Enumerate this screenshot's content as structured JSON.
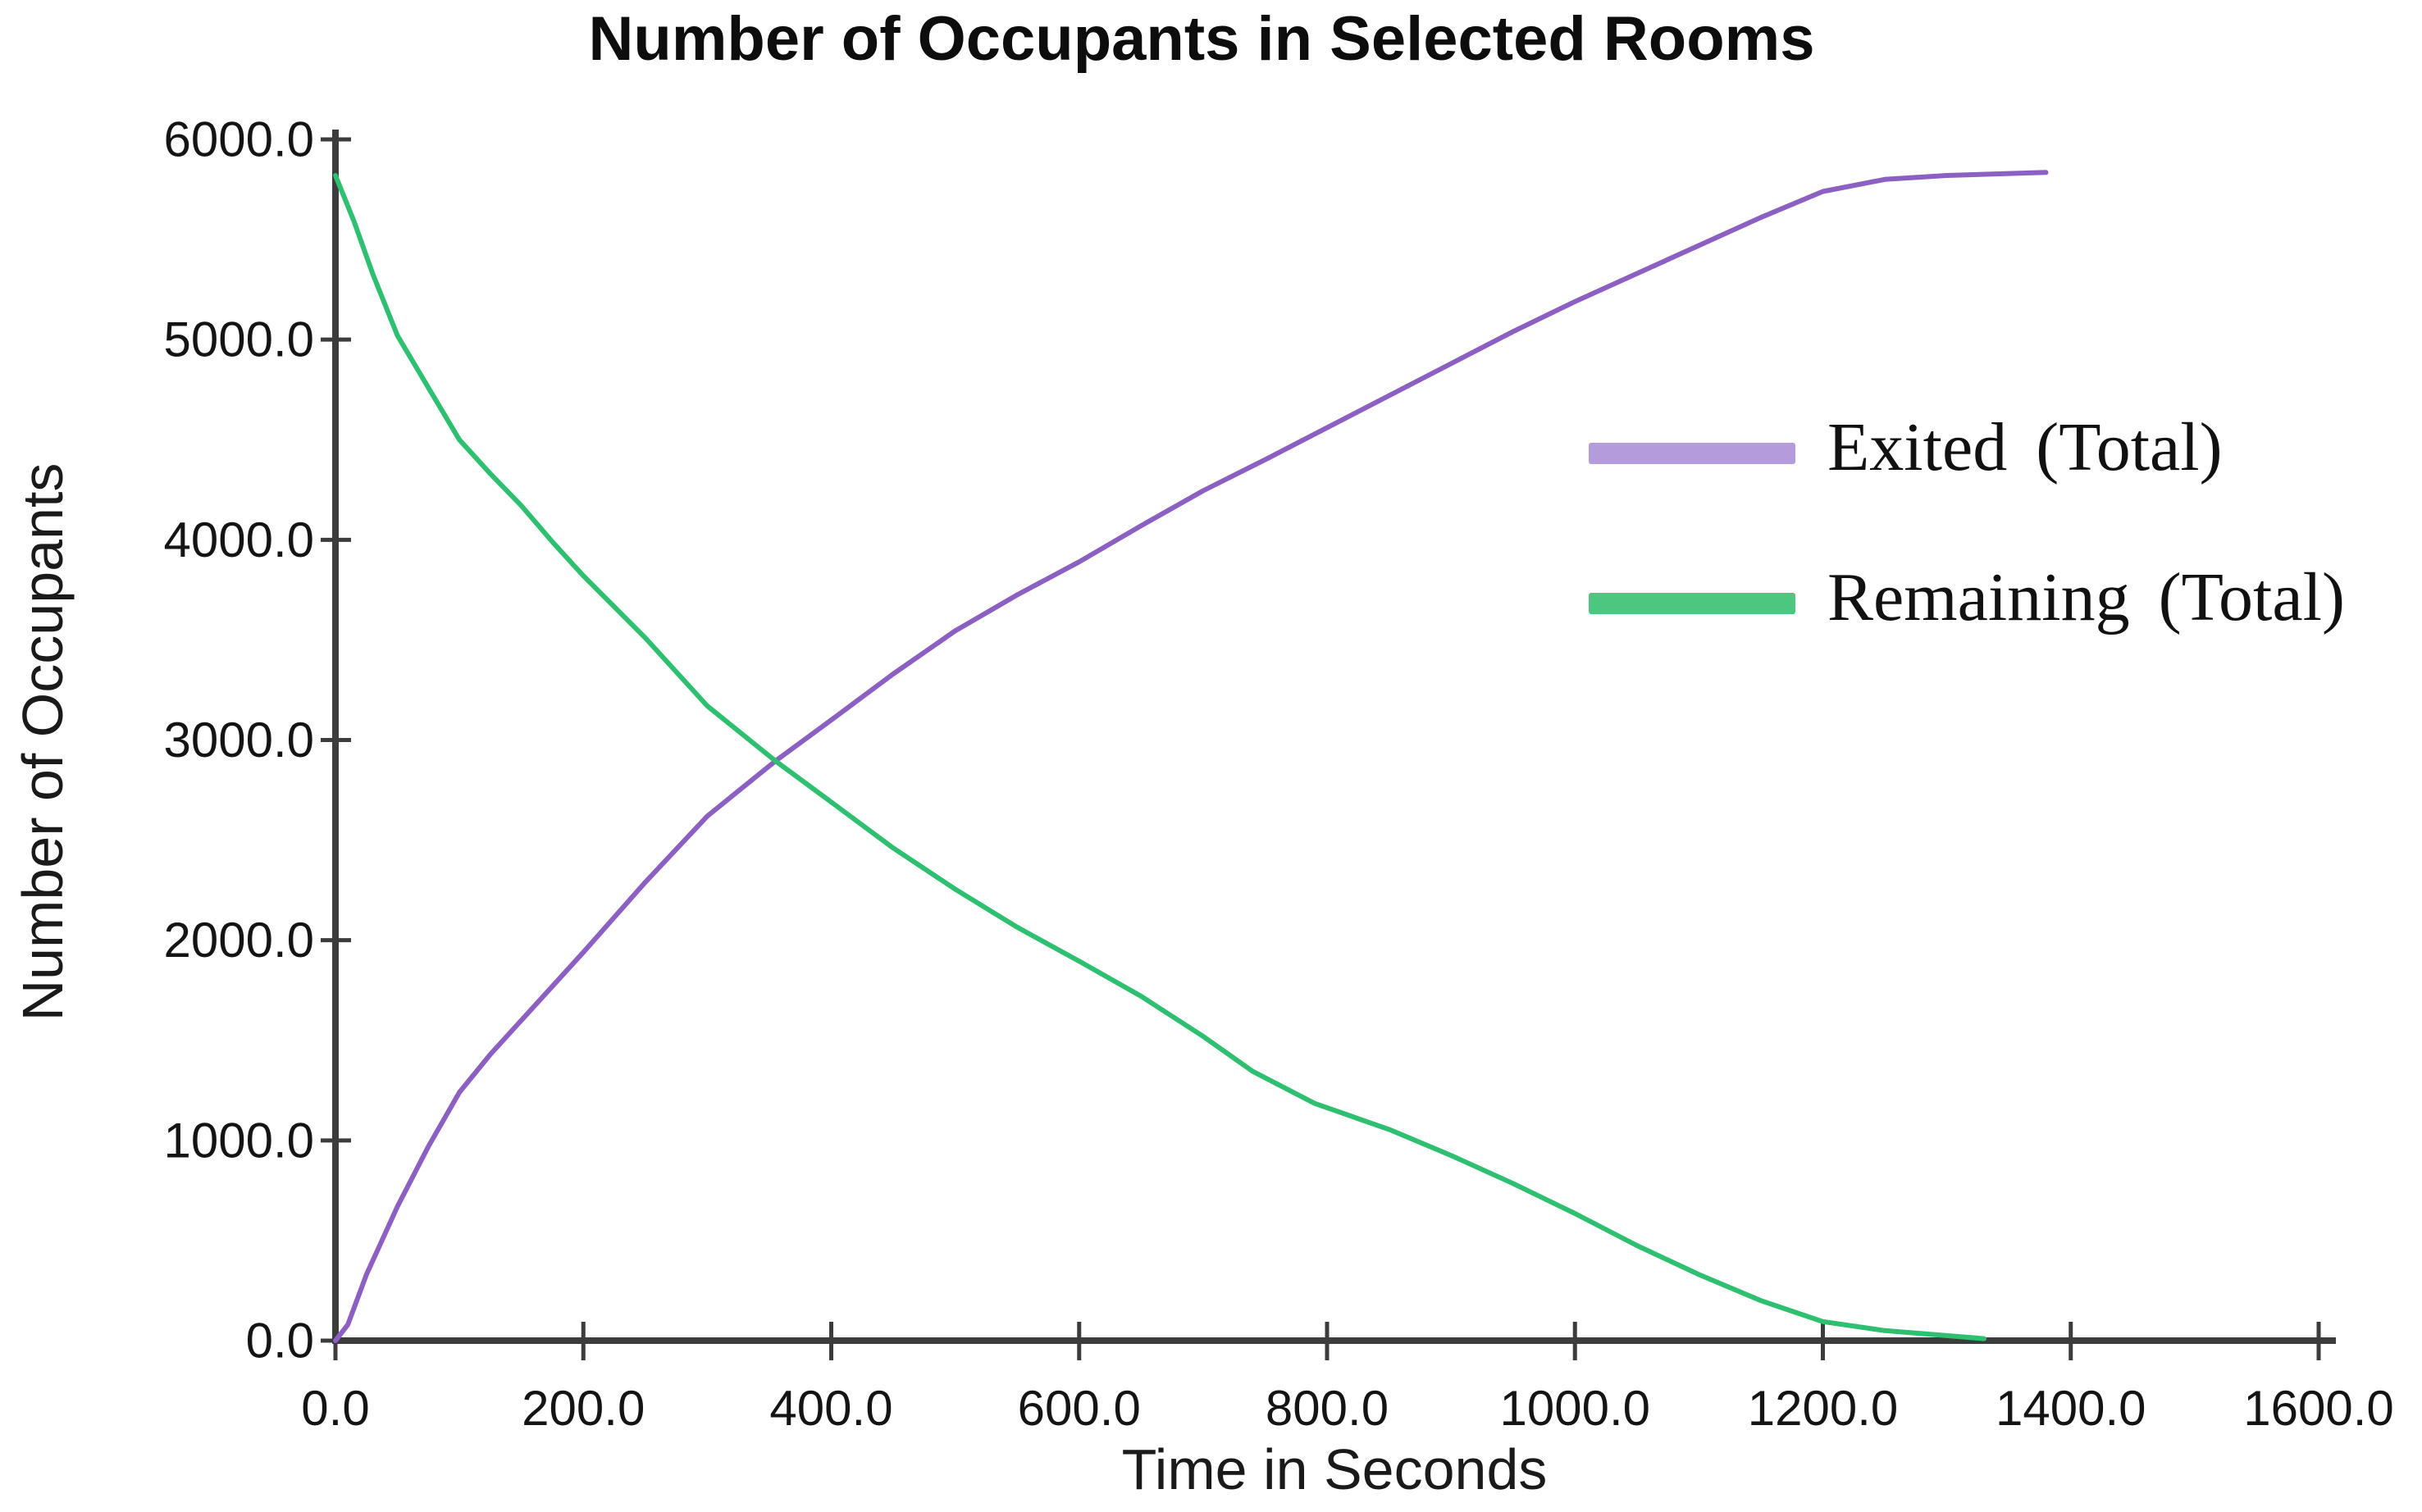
{
  "chart": {
    "title": "Number of Occupants in Selected Rooms",
    "xlabel": "Time in Seconds",
    "ylabel": "Number of Occupants"
  },
  "legend": {
    "position": "upper right",
    "items": [
      {
        "label": "Exited (Total)",
        "swatch_color": "#b49bdc",
        "line_color": "#8c5fc3"
      },
      {
        "label": "Remaining (Total)",
        "swatch_color": "#4dc67f",
        "line_color": "#2ebf70"
      }
    ]
  },
  "chart_data": {
    "type": "line",
    "title": "Number of Occupants in Selected Rooms",
    "xlabel": "Time in Seconds",
    "ylabel": "Number of Occupants",
    "xlim": [
      0,
      1600
    ],
    "ylim": [
      0,
      6000
    ],
    "grid": false,
    "legend_position": "upper right",
    "x_tick_values": [
      0,
      200,
      400,
      600,
      800,
      1000,
      1200,
      1400,
      1600
    ],
    "x_tick_labels": [
      "0.0",
      "200.0",
      "400.0",
      "600.0",
      "800.0",
      "1000.0",
      "1200.0",
      "1400.0",
      "1600.0"
    ],
    "y_tick_values": [
      0,
      1000,
      2000,
      3000,
      4000,
      5000,
      6000
    ],
    "y_tick_labels": [
      "0.0",
      "1000.0",
      "2000.0",
      "3000.0",
      "4000.0",
      "5000.0",
      "6000.0"
    ],
    "axis_color": "#3c3c3c",
    "tick_label_color": "#141414",
    "series": [
      {
        "name": "Exited (Total)",
        "color": "#8c5fc3",
        "points": [
          [
            0,
            0
          ],
          [
            10,
            80
          ],
          [
            25,
            330
          ],
          [
            50,
            670
          ],
          [
            75,
            970
          ],
          [
            100,
            1240
          ],
          [
            125,
            1430
          ],
          [
            150,
            1600
          ],
          [
            175,
            1770
          ],
          [
            200,
            1940
          ],
          [
            250,
            2290
          ],
          [
            300,
            2620
          ],
          [
            355,
            2895
          ],
          [
            400,
            3100
          ],
          [
            450,
            3330
          ],
          [
            500,
            3545
          ],
          [
            550,
            3725
          ],
          [
            600,
            3890
          ],
          [
            650,
            4070
          ],
          [
            700,
            4245
          ],
          [
            750,
            4400
          ],
          [
            800,
            4560
          ],
          [
            850,
            4720
          ],
          [
            900,
            4880
          ],
          [
            950,
            5040
          ],
          [
            1000,
            5190
          ],
          [
            1050,
            5330
          ],
          [
            1100,
            5470
          ],
          [
            1150,
            5610
          ],
          [
            1200,
            5740
          ],
          [
            1250,
            5800
          ],
          [
            1300,
            5820
          ],
          [
            1380,
            5835
          ]
        ]
      },
      {
        "name": "Remaining (Total)",
        "color": "#2ebf70",
        "points": [
          [
            0,
            5820
          ],
          [
            15,
            5590
          ],
          [
            30,
            5330
          ],
          [
            50,
            5020
          ],
          [
            75,
            4760
          ],
          [
            100,
            4500
          ],
          [
            125,
            4330
          ],
          [
            150,
            4170
          ],
          [
            175,
            3990
          ],
          [
            200,
            3820
          ],
          [
            250,
            3510
          ],
          [
            300,
            3170
          ],
          [
            355,
            2895
          ],
          [
            400,
            2690
          ],
          [
            450,
            2460
          ],
          [
            500,
            2255
          ],
          [
            550,
            2065
          ],
          [
            600,
            1895
          ],
          [
            650,
            1720
          ],
          [
            700,
            1520
          ],
          [
            740,
            1345
          ],
          [
            790,
            1185
          ],
          [
            850,
            1055
          ],
          [
            900,
            925
          ],
          [
            950,
            785
          ],
          [
            1000,
            635
          ],
          [
            1050,
            475
          ],
          [
            1100,
            330
          ],
          [
            1150,
            200
          ],
          [
            1200,
            95
          ],
          [
            1250,
            50
          ],
          [
            1300,
            25
          ],
          [
            1330,
            10
          ]
        ]
      }
    ]
  }
}
